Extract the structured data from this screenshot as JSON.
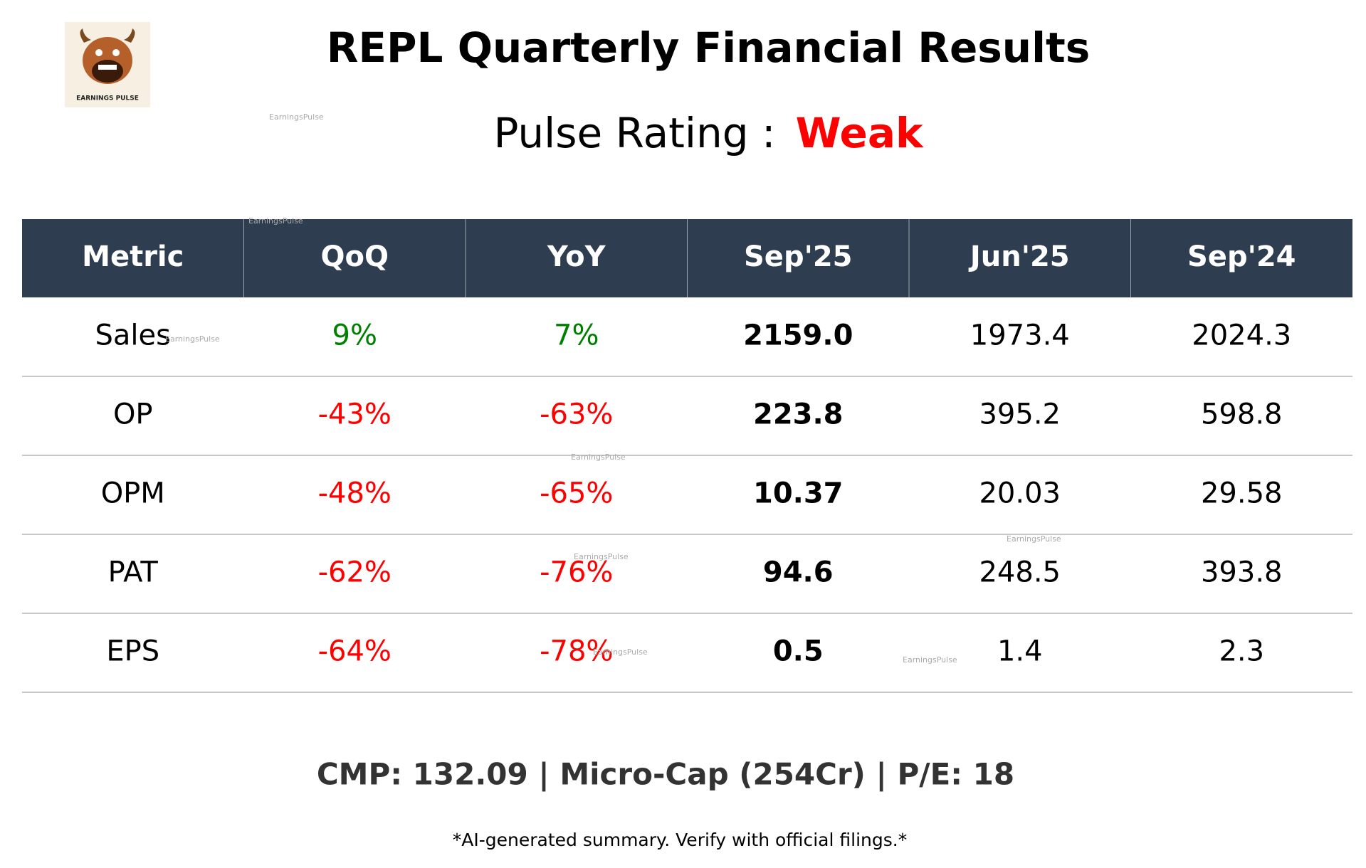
{
  "header": {
    "title": "REPL Quarterly Financial Results",
    "rating_label": "Pulse Rating :",
    "rating": "Weak",
    "logo_text": "EARNINGS PULSE"
  },
  "watermark": "EarningsPulse",
  "table": {
    "columns": [
      "Metric",
      "QoQ",
      "YoY",
      "Sep'25",
      "Jun'25",
      "Sep'24"
    ],
    "rows": [
      [
        "Sales",
        "9%",
        "7%",
        "2159.0",
        "1973.4",
        "2024.3"
      ],
      [
        "OP",
        "-43%",
        "-63%",
        "223.8",
        "395.2",
        "598.8"
      ],
      [
        "OPM",
        "-48%",
        "-65%",
        "10.37",
        "20.03",
        "29.58"
      ],
      [
        "PAT",
        "-62%",
        "-76%",
        "94.6",
        "248.5",
        "393.8"
      ],
      [
        "EPS",
        "-64%",
        "-78%",
        "0.5",
        "1.4",
        "2.3"
      ]
    ]
  },
  "footer": {
    "summary": "CMP: 132.09 | Micro-Cap (254Cr) | P/E: 18",
    "disclaimer": "*AI-generated summary. Verify with official filings.*"
  }
}
